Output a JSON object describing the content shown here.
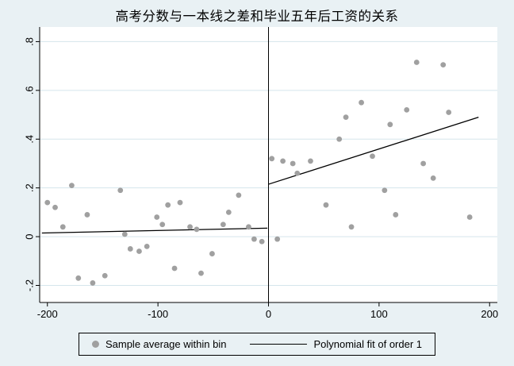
{
  "title": "高考分数与一本线之差和毕业五年后工资的关系",
  "legend": {
    "scatter_label": "Sample average within bin",
    "line_label": "Polynomial fit of order 1"
  },
  "colors": {
    "background": "#e9f1f4",
    "plot_background": "#ffffff",
    "gridline": "#d5e5ec",
    "scatter": "#a0a0a0",
    "line": "#000000",
    "axis": "#000000",
    "text": "#000000"
  },
  "chart_data": {
    "type": "scatter",
    "title": "高考分数与一本线之差和毕业五年后工资的关系",
    "xlabel": "",
    "ylabel": "",
    "xlim": [
      -207,
      207
    ],
    "ylim": [
      -0.27,
      0.86
    ],
    "x_ticks": [
      -200,
      -100,
      0,
      100,
      200
    ],
    "x_tick_labels": [
      "-200",
      "-100",
      "0",
      "100",
      "200"
    ],
    "y_ticks": [
      -0.2,
      0,
      0.2,
      0.4,
      0.6,
      0.8
    ],
    "y_tick_labels": [
      "-.2",
      "0",
      ".2",
      ".4",
      ".6",
      ".8"
    ],
    "grid": "horizontal",
    "legend_position": "bottom",
    "vline_x": 0,
    "series": [
      {
        "name": "Sample average within bin",
        "type": "scatter",
        "points": [
          [
            -200,
            0.14
          ],
          [
            -193,
            0.12
          ],
          [
            -186,
            0.04
          ],
          [
            -178,
            0.21
          ],
          [
            -172,
            -0.17
          ],
          [
            -164,
            0.09
          ],
          [
            -159,
            -0.19
          ],
          [
            -148,
            -0.16
          ],
          [
            -134,
            0.19
          ],
          [
            -130,
            0.01
          ],
          [
            -125,
            -0.05
          ],
          [
            -117,
            -0.06
          ],
          [
            -110,
            -0.04
          ],
          [
            -101,
            0.08
          ],
          [
            -96,
            0.05
          ],
          [
            -91,
            0.13
          ],
          [
            -85,
            -0.13
          ],
          [
            -80,
            0.14
          ],
          [
            -71,
            0.04
          ],
          [
            -65,
            0.03
          ],
          [
            -61,
            -0.15
          ],
          [
            -51,
            -0.07
          ],
          [
            -41,
            0.05
          ],
          [
            -36,
            0.1
          ],
          [
            -27,
            0.17
          ],
          [
            -18,
            0.04
          ],
          [
            -13,
            -0.01
          ],
          [
            -6,
            -0.02
          ],
          [
            3,
            0.32
          ],
          [
            8,
            -0.01
          ],
          [
            13,
            0.31
          ],
          [
            22,
            0.3
          ],
          [
            26,
            0.26
          ],
          [
            38,
            0.31
          ],
          [
            52,
            0.13
          ],
          [
            64,
            0.4
          ],
          [
            70,
            0.49
          ],
          [
            75,
            0.04
          ],
          [
            84,
            0.55
          ],
          [
            94,
            0.33
          ],
          [
            105,
            0.19
          ],
          [
            110,
            0.46
          ],
          [
            115,
            0.09
          ],
          [
            125,
            0.52
          ],
          [
            134,
            0.715
          ],
          [
            140,
            0.3
          ],
          [
            149,
            0.24
          ],
          [
            158,
            0.705
          ],
          [
            163,
            0.51
          ],
          [
            182,
            0.08
          ]
        ]
      },
      {
        "name": "Polynomial fit of order 1",
        "type": "line",
        "segments": [
          {
            "x1": -205,
            "y1": 0.015,
            "x2": -1,
            "y2": 0.035
          },
          {
            "x1": 0,
            "y1": 0.215,
            "x2": 190,
            "y2": 0.49
          }
        ]
      }
    ]
  }
}
